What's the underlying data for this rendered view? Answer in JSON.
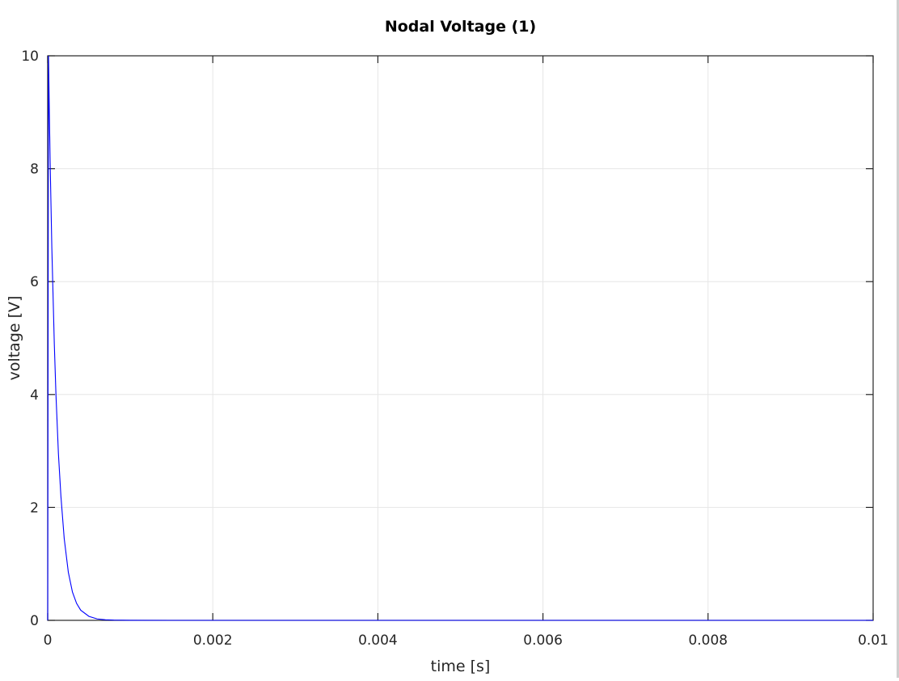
{
  "chart_data": {
    "type": "line",
    "title": "Nodal Voltage (1)",
    "xlabel": "time [s]",
    "ylabel": "voltage [V]",
    "xlim": [
      0,
      0.01
    ],
    "ylim": [
      0,
      10
    ],
    "xticks": [
      0,
      0.002,
      0.004,
      0.006,
      0.008,
      0.01
    ],
    "xtick_labels": [
      "0",
      "0.002",
      "0.004",
      "0.006",
      "0.008",
      "0.01"
    ],
    "yticks": [
      0,
      2,
      4,
      6,
      8,
      10
    ],
    "ytick_labels": [
      "0",
      "2",
      "4",
      "6",
      "8",
      "10"
    ],
    "grid": true,
    "series": [
      {
        "color": "#0000ff",
        "x": [
          0,
          1e-05,
          2e-05,
          3e-05,
          5e-05,
          8e-05,
          0.0001,
          0.00013,
          0.00016,
          0.0002,
          0.00025,
          0.0003,
          0.00035,
          0.0004,
          0.0005,
          0.0006,
          0.0007,
          0.0008,
          0.001,
          0.0015,
          0.002,
          0.004,
          0.006,
          0.008,
          0.01
        ],
        "values": [
          0,
          10,
          9.0,
          8.1,
          6.6,
          4.9,
          4.0,
          2.95,
          2.2,
          1.45,
          0.85,
          0.5,
          0.3,
          0.18,
          0.07,
          0.025,
          0.01,
          0.004,
          0.001,
          0,
          0,
          0,
          0,
          0,
          0
        ]
      }
    ]
  }
}
